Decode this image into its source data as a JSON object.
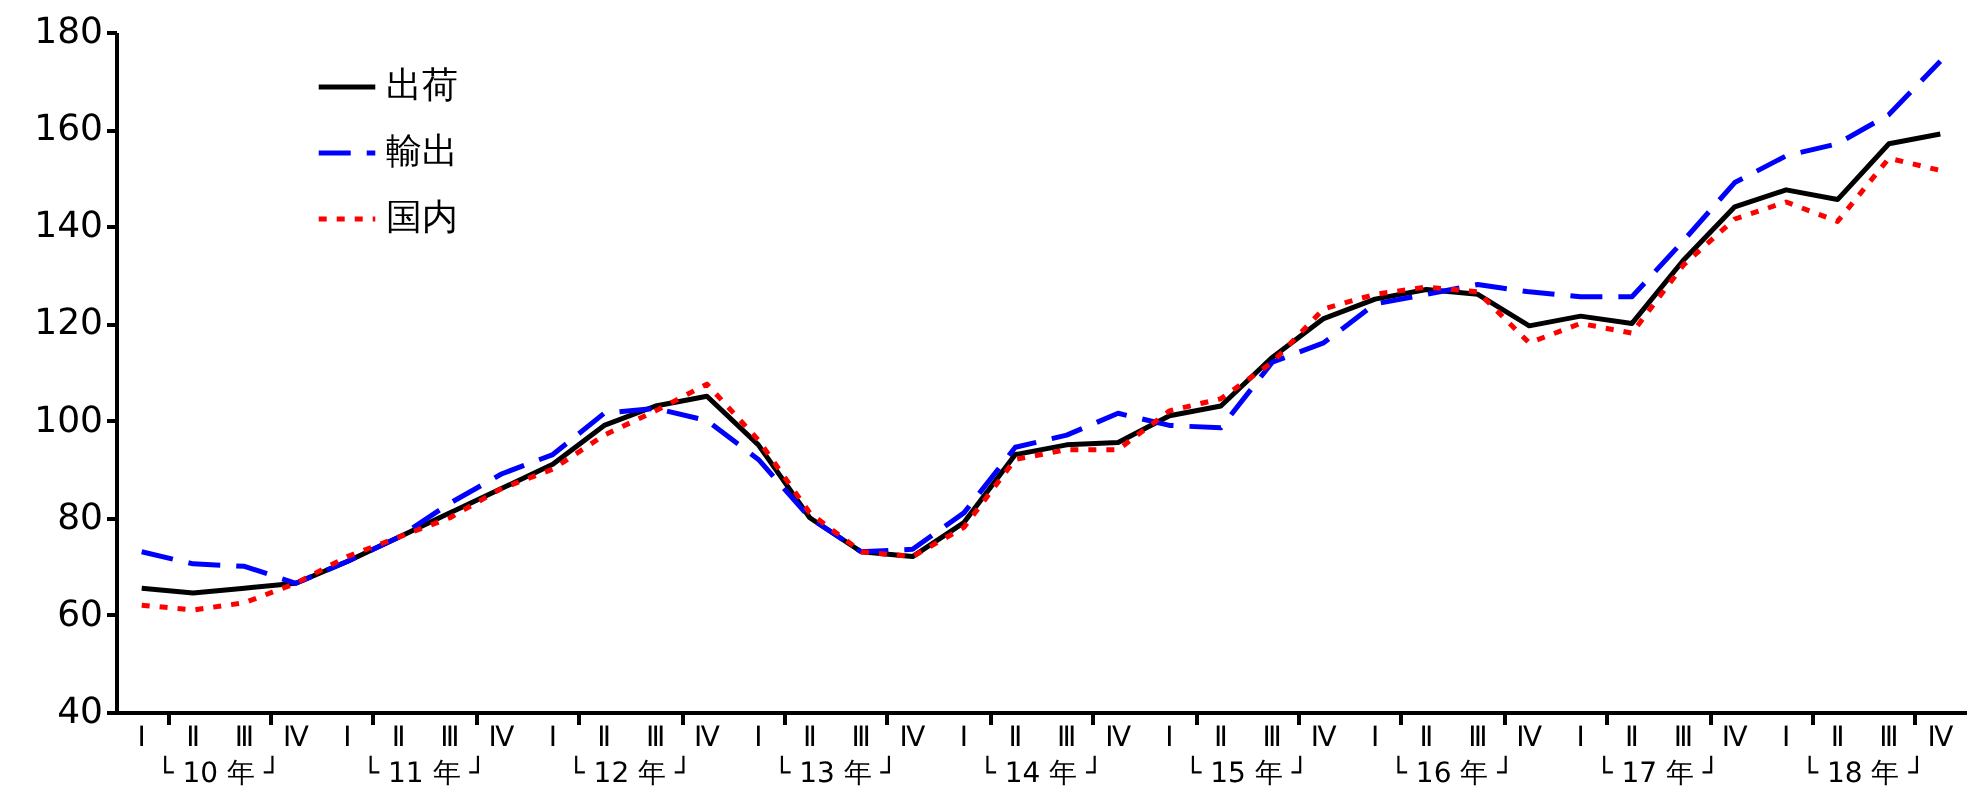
{
  "chart_data": {
    "type": "line",
    "categories": [
      "Ⅰ",
      "Ⅱ",
      "Ⅲ",
      "Ⅳ",
      "Ⅰ",
      "Ⅱ",
      "Ⅲ",
      "Ⅳ",
      "Ⅰ",
      "Ⅱ",
      "Ⅲ",
      "Ⅳ",
      "Ⅰ",
      "Ⅱ",
      "Ⅲ",
      "Ⅳ",
      "Ⅰ",
      "Ⅱ",
      "Ⅲ",
      "Ⅳ",
      "Ⅰ",
      "Ⅱ",
      "Ⅲ",
      "Ⅳ",
      "Ⅰ",
      "Ⅱ",
      "Ⅲ",
      "Ⅳ",
      "Ⅰ",
      "Ⅱ",
      "Ⅲ",
      "Ⅳ",
      "Ⅰ",
      "Ⅱ",
      "Ⅲ",
      "Ⅳ"
    ],
    "series": [
      {
        "name": "出荷",
        "color": "#000000",
        "line_style": "solid",
        "values": [
          65.5,
          64.5,
          65.5,
          66.5,
          71,
          76,
          81,
          86,
          91,
          99,
          103,
          105,
          95,
          80,
          73,
          72,
          79,
          93,
          95,
          95.5,
          101,
          103,
          113,
          121,
          125,
          127,
          126,
          119.5,
          121.5,
          120,
          133,
          144,
          147.5,
          145.5,
          157,
          159
        ]
      },
      {
        "name": "輸出",
        "color": "#0000ff",
        "line_style": "dashed",
        "values": [
          73,
          70.5,
          70,
          66.5,
          71,
          76,
          83,
          89,
          93,
          101.5,
          102.5,
          100,
          92,
          80,
          73,
          73.5,
          81,
          94.5,
          97,
          101.5,
          99,
          98.5,
          112,
          116,
          124,
          126,
          128,
          126.5,
          125.5,
          125.5,
          137,
          149,
          154.5,
          157,
          163,
          174
        ]
      },
      {
        "name": "国内",
        "color": "#ff0000",
        "line_style": "dotted",
        "values": [
          62,
          61,
          62.5,
          66.5,
          72,
          76,
          80,
          86,
          90,
          97,
          102,
          107.5,
          96,
          81,
          73,
          72,
          78,
          92,
          94,
          94,
          102,
          104.5,
          112,
          123,
          126,
          127.5,
          126.5,
          116,
          120,
          118,
          132,
          141.5,
          145,
          141,
          154,
          151.5
        ]
      }
    ],
    "annotations": [
      "└ 10 年 ┘",
      "└ 11 年 ┘",
      "└ 12 年 ┘",
      "└ 13 年 ┘",
      "└ 14 年 ┘",
      "└ 15 年 ┘",
      "└ 16 年 ┘",
      "└ 17 年 ┘",
      "└ 18 年 ┘"
    ],
    "ylim": [
      40,
      180
    ],
    "yticks": [
      40,
      60,
      80,
      100,
      120,
      140,
      160,
      180
    ],
    "grid": false,
    "legend": "top left",
    "marker": "none"
  }
}
